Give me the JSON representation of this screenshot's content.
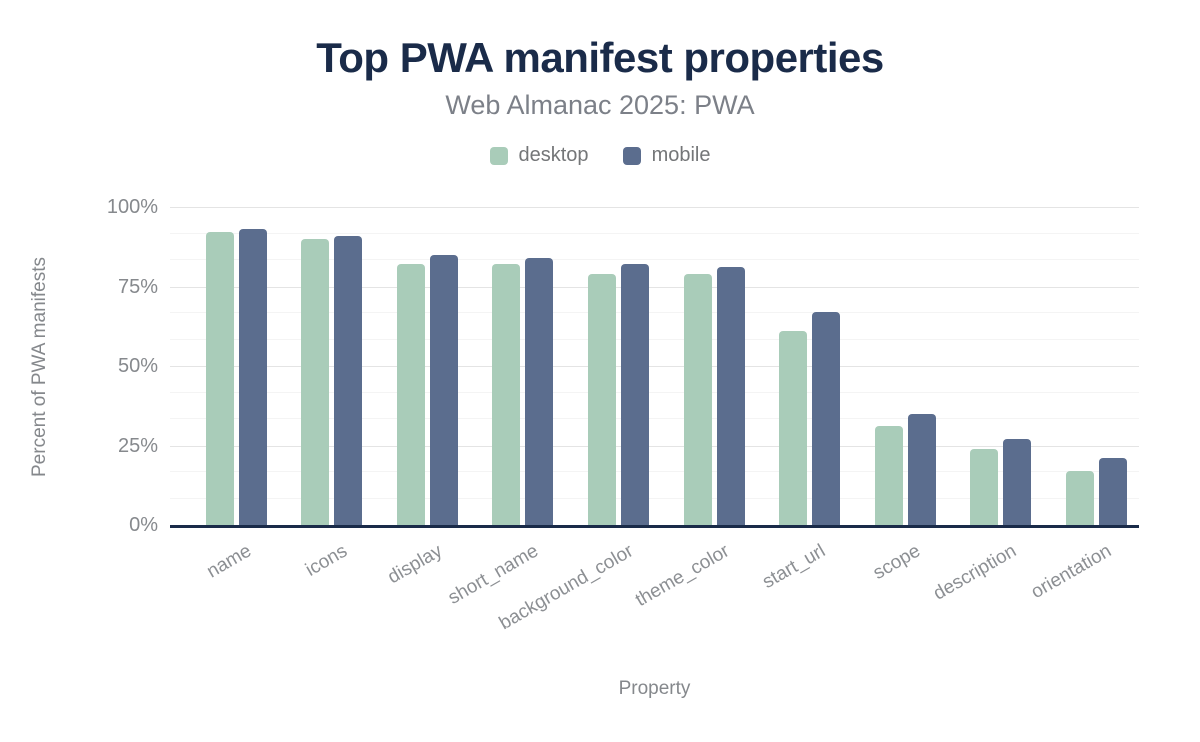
{
  "figure": {
    "title": "Top PWA manifest properties",
    "subtitle": "Web Almanac 2025: PWA"
  },
  "chart_data": {
    "type": "bar",
    "title": "Top PWA manifest properties",
    "subtitle": "Web Almanac 2025: PWA",
    "xlabel": "Property",
    "ylabel": "Percent of PWA manifests",
    "categories": [
      "name",
      "icons",
      "display",
      "short_name",
      "background_color",
      "theme_color",
      "start_url",
      "scope",
      "description",
      "orientation"
    ],
    "series": [
      {
        "name": "desktop",
        "color": "#a9ccb9",
        "values": [
          92,
          90,
          82,
          82,
          79,
          79,
          61,
          31,
          24,
          17
        ]
      },
      {
        "name": "mobile",
        "color": "#5b6d8e",
        "values": [
          93,
          91,
          85,
          84,
          82,
          81,
          67,
          35,
          27,
          21
        ]
      }
    ],
    "ylim": [
      0,
      100
    ],
    "yticks": [
      {
        "value": 0,
        "label": "0%"
      },
      {
        "value": 25,
        "label": "25%"
      },
      {
        "value": 50,
        "label": "50%"
      },
      {
        "value": 75,
        "label": "75%"
      },
      {
        "value": 100,
        "label": "100%"
      }
    ],
    "minor_gridlines_percent": [
      8.33,
      16.67,
      33.33,
      41.67,
      58.33,
      66.67,
      83.33,
      91.67
    ],
    "grid": true,
    "legend_position": "top",
    "x_label_rotation_deg": -30
  },
  "colors": {
    "background": "#ffffff",
    "title": "#1a2b49",
    "subtitle": "#7c8088",
    "axis_line": "#1a2b49",
    "tick_label": "#86898d",
    "axis_title": "#85888c",
    "category_label": "#8c8f93",
    "legend_label": "#747678",
    "grid_major": "#e4e4e4",
    "grid_minor": "#f4f4f4",
    "desktop_bar": "#a9ccb9",
    "mobile_bar": "#5b6d8e"
  }
}
